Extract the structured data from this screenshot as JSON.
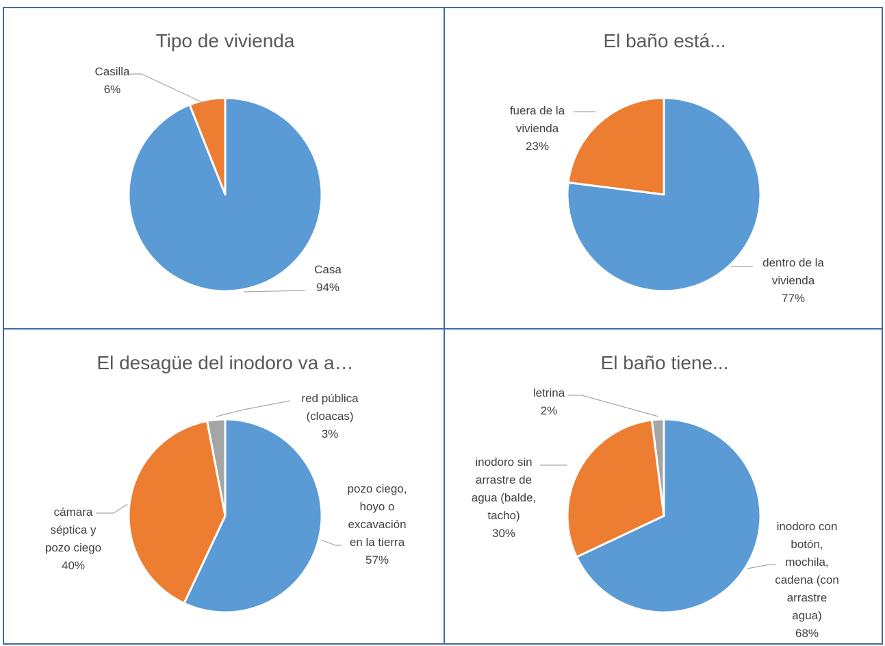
{
  "colors": {
    "blue": "#5b9bd5",
    "orange": "#ed7d31",
    "gray": "#a5a5a5",
    "border": "#3f6aa6"
  },
  "chart_data": [
    {
      "type": "pie",
      "title": "Tipo de vivienda",
      "slices": [
        {
          "label": [
            "Casa"
          ],
          "pct_label": "94%",
          "value": 94,
          "color": "#5b9bd5"
        },
        {
          "label": [
            "Casilla"
          ],
          "pct_label": "6%",
          "value": 6,
          "color": "#ed7d31"
        }
      ]
    },
    {
      "type": "pie",
      "title": "El baño está...",
      "slices": [
        {
          "label": [
            "dentro de la",
            "vivienda"
          ],
          "pct_label": "77%",
          "value": 77,
          "color": "#5b9bd5"
        },
        {
          "label": [
            "fuera de la",
            "vivienda"
          ],
          "pct_label": "23%",
          "value": 23,
          "color": "#ed7d31"
        }
      ]
    },
    {
      "type": "pie",
      "title": "El desagüe del inodoro va a…",
      "slices": [
        {
          "label": [
            "pozo ciego,",
            "hoyo o",
            "excavación",
            "en la tierra"
          ],
          "pct_label": "57%",
          "value": 57,
          "color": "#5b9bd5"
        },
        {
          "label": [
            "cámara",
            "séptica y",
            "pozo ciego"
          ],
          "pct_label": "40%",
          "value": 40,
          "color": "#ed7d31"
        },
        {
          "label": [
            "red pública",
            "(cloacas)"
          ],
          "pct_label": "3%",
          "value": 3,
          "color": "#a5a5a5"
        }
      ]
    },
    {
      "type": "pie",
      "title": "El baño tiene...",
      "slices": [
        {
          "label": [
            "inodoro con",
            "botón,",
            "mochila,",
            "cadena (con",
            "arrastre",
            "agua)"
          ],
          "pct_label": "68%",
          "value": 68,
          "color": "#5b9bd5"
        },
        {
          "label": [
            "inodoro sin",
            "arrastre de",
            "agua (balde,",
            "tacho)"
          ],
          "pct_label": "30%",
          "value": 30,
          "color": "#ed7d31"
        },
        {
          "label": [
            "letrina"
          ],
          "pct_label": "2%",
          "value": 2,
          "color": "#a5a5a5"
        }
      ]
    }
  ]
}
